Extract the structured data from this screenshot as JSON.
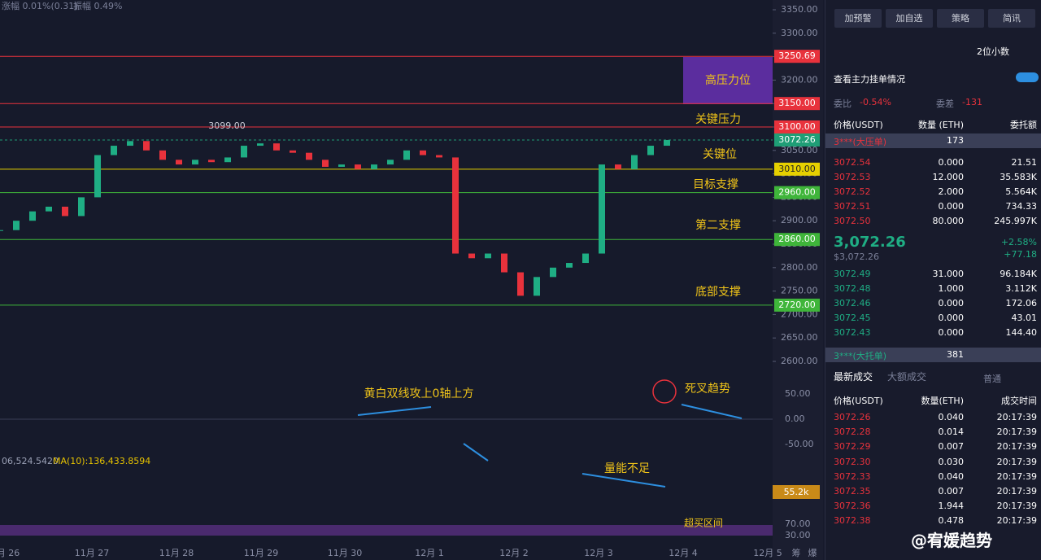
{
  "header": {
    "change": "涨幅 0.01%(0.31)",
    "amplitude": "振幅 0.49%"
  },
  "chart": {
    "yticks": [
      {
        "value": 3350,
        "label": "3350.00"
      },
      {
        "value": 3300,
        "label": "3300.00"
      },
      {
        "value": 3250,
        "label": "3250.00"
      },
      {
        "value": 3200,
        "label": "3200.00"
      },
      {
        "value": 3150,
        "label": "3150.00"
      },
      {
        "value": 3100,
        "label": "3100.00"
      },
      {
        "value": 3050,
        "label": "3050.00"
      },
      {
        "value": 3000,
        "label": "3000.00"
      },
      {
        "value": 2950,
        "label": "2950.00"
      },
      {
        "value": 2900,
        "label": "2900.00"
      },
      {
        "value": 2850,
        "label": "2850.00"
      },
      {
        "value": 2800,
        "label": "2800.00"
      },
      {
        "value": 2750,
        "label": "2750.00"
      },
      {
        "value": 2700,
        "label": "2700.00"
      },
      {
        "value": 2650,
        "label": "2650.00"
      },
      {
        "value": 2600,
        "label": "2600.00"
      }
    ],
    "ylim": [
      2600,
      3350
    ],
    "levels": [
      {
        "value": 3250.69,
        "color": "#e8323c"
      },
      {
        "value": 3150,
        "label": "3150.00",
        "color": "#e8323c"
      },
      {
        "value": 3100,
        "label": "3100.00",
        "color": "#e8323c"
      },
      {
        "value": 3072.26,
        "color": "#1f9e76"
      },
      {
        "value": 3010,
        "label": "3010.00",
        "color": "#e6d000"
      },
      {
        "value": 2960,
        "label": "2960.00",
        "color": "#3fb53a"
      },
      {
        "value": 2860,
        "label": "2860.00",
        "color": "#3fb53a"
      },
      {
        "value": 2720,
        "label": "2720.00",
        "color": "#3fb53a"
      }
    ],
    "closes": [
      2880,
      2900,
      2920,
      2930,
      2910,
      2950,
      3040,
      3060,
      3070,
      3050,
      3030,
      3020,
      3030,
      3025,
      3035,
      3060,
      3065,
      3050,
      3045,
      3030,
      3015,
      3020,
      3010,
      3020,
      3030,
      3050,
      3040,
      3035,
      2830,
      2820,
      2830,
      2790,
      2740,
      2780,
      2800,
      2810,
      2830,
      3020,
      3010,
      3040,
      3060,
      3072.26
    ],
    "annotations": [
      "高压力位",
      "关键压力",
      "关键位",
      "目标支撑",
      "第二支撑",
      "底部支撑",
      "3099.00",
      "黄白双线攻上0轴上方",
      "死叉趋势",
      "量能不足",
      "超买区间"
    ],
    "macd_ticks": [
      "50.00",
      "0.00",
      "-50.00"
    ],
    "volume_ma": [
      "06,524.5420",
      "MA(10):136,433.8594"
    ],
    "volume_last": "55.2k",
    "rsi_ticks": [
      "70.00",
      "30.00"
    ],
    "xlabels": [
      "月 26",
      "11月 27",
      "11月 28",
      "11月 29",
      "11月 30",
      "12月 1",
      "12月 2",
      "12月 3",
      "12月 4",
      "12月 5",
      "筹",
      "爆"
    ]
  },
  "panel": {
    "buttons": [
      "加预警",
      "加自选",
      "策略",
      "简讯"
    ],
    "decimals": "2位小数",
    "main_orders": "查看主力挂单情况",
    "ratio_label": "委比",
    "ratio": "-0.54%",
    "diff_label": "委差",
    "diff": "-131",
    "book_headers": [
      "价格(USDT)",
      "数量 (ETH)",
      "委托额"
    ],
    "big_ask": [
      "3***(大压单)",
      "173"
    ],
    "asks": [
      [
        "3072.54",
        "0.000",
        "21.51"
      ],
      [
        "3072.53",
        "12.000",
        "35.583K"
      ],
      [
        "3072.52",
        "2.000",
        "5.564K"
      ],
      [
        "3072.51",
        "0.000",
        "734.33"
      ],
      [
        "3072.50",
        "80.000",
        "245.997K"
      ]
    ],
    "last": "3,072.26",
    "last_usd": "$3,072.26",
    "pct": "+2.58%",
    "delta": "+77.18",
    "bids": [
      [
        "3072.49",
        "31.000",
        "96.184K"
      ],
      [
        "3072.48",
        "1.000",
        "3.112K"
      ],
      [
        "3072.46",
        "0.000",
        "172.06"
      ],
      [
        "3072.45",
        "0.000",
        "43.01"
      ],
      [
        "3072.43",
        "0.000",
        "144.40"
      ]
    ],
    "big_bid": [
      "3***(大托单)",
      "381"
    ],
    "tabs": [
      "最新成交",
      "大额成交",
      "普通"
    ],
    "trade_headers": [
      "价格(USDT)",
      "数量(ETH)",
      "成交时间"
    ],
    "trades": [
      [
        "3072.26",
        "0.040",
        "20:17:39"
      ],
      [
        "3072.28",
        "0.014",
        "20:17:39"
      ],
      [
        "3072.29",
        "0.007",
        "20:17:39"
      ],
      [
        "3072.30",
        "0.030",
        "20:17:39"
      ],
      [
        "3072.33",
        "0.040",
        "20:17:39"
      ],
      [
        "3072.35",
        "0.007",
        "20:17:39"
      ],
      [
        "3072.36",
        "1.944",
        "20:17:39"
      ],
      [
        "3072.38",
        "0.478",
        "20:17:39"
      ]
    ]
  },
  "watermark": "@宥媛趋势"
}
